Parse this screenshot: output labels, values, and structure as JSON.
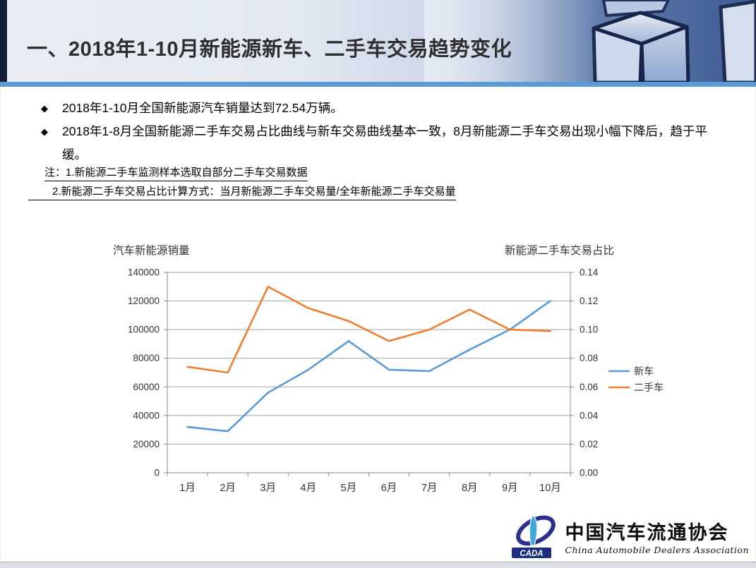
{
  "slide": {
    "title": "一、2018年1-10月新能源新车、二手车交易趋势变化",
    "bullet_marker": "◆",
    "bullets": [
      "2018年1-10月全国新能源汽车销量达到72.54万辆。",
      "2018年1-8月全国新能源二手车交易占比曲线与新车交易曲线基本一致，8月新能源二手车交易出现小幅下降后，趋于平缓。"
    ],
    "notes": [
      "注：1.新能源二手车监测样本选取自部分二手车交易数据",
      "2.新能源二手车交易占比计算方式：当月新能源二手车交易量/全年新能源二手车交易量"
    ]
  },
  "chart_data": {
    "type": "line",
    "categories": [
      "1月",
      "2月",
      "3月",
      "4月",
      "5月",
      "6月",
      "7月",
      "8月",
      "9月",
      "10月"
    ],
    "series": [
      {
        "name": "新车",
        "axis": "left",
        "color": "#5B9BD5",
        "values": [
          32000,
          29000,
          56000,
          72000,
          92000,
          72000,
          71000,
          86000,
          100000,
          120000
        ]
      },
      {
        "name": "二手车",
        "axis": "right",
        "color": "#ED7D31",
        "values": [
          0.074,
          0.07,
          0.13,
          0.115,
          0.106,
          0.092,
          0.1,
          0.114,
          0.1,
          0.099
        ]
      }
    ],
    "left_axis": {
      "title": "汽车新能源销量",
      "min": 0,
      "max": 140000,
      "step": 20000,
      "tick_labels": [
        "0",
        "20000",
        "40000",
        "60000",
        "80000",
        "100000",
        "120000",
        "140000"
      ]
    },
    "right_axis": {
      "title": "新能源二手车交易占比",
      "min": 0,
      "max": 0.14,
      "step": 0.02,
      "tick_labels": [
        "0.00",
        "0.02",
        "0.04",
        "0.06",
        "0.08",
        "0.10",
        "0.12",
        "0.14"
      ]
    },
    "grid": true,
    "legend_position": "right"
  },
  "footer": {
    "logo_abbr": "CADA",
    "logo_text_cn": "中国汽车流通协会",
    "logo_text_en": "China Automobile Dealers Association"
  },
  "colors": {
    "accent_rule": "#5B9BD5",
    "header_bar": "#161F38",
    "series_new_car": "#5B9BD5",
    "series_used_car": "#ED7D31"
  }
}
